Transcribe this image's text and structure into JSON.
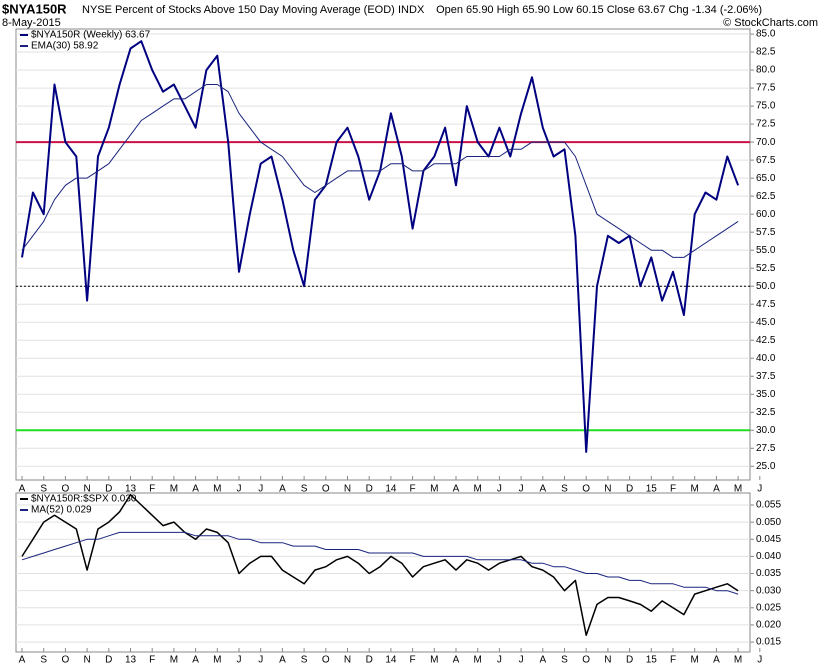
{
  "header": {
    "symbol": "$NYA150R",
    "description": "NYSE Percent of Stocks Above 150 Day Moving Average (EOD)",
    "exchange": "INDX",
    "date": "8-May-2015",
    "quote": "Open 65.90   High 65.90   Low 60.15   Close 63.67   Chg -1.34 (-2.06%)",
    "credit": "© StockCharts.com"
  },
  "chart_data": [
    {
      "type": "line",
      "categories": [
        "A",
        null,
        "S",
        null,
        "O",
        null,
        "N",
        null,
        "D",
        null,
        "13",
        null,
        "F",
        null,
        "M",
        null,
        "A",
        null,
        "M",
        null,
        "J",
        null,
        "J",
        null,
        "A",
        null,
        "S",
        null,
        "O",
        null,
        "N",
        null,
        "D",
        null,
        "14",
        null,
        "F",
        null,
        "M",
        null,
        "A",
        null,
        "M",
        null,
        "J",
        null,
        "J",
        null,
        "A",
        null,
        "S",
        null,
        "O",
        null,
        "N",
        null,
        "D",
        null,
        "15",
        null,
        "F",
        null,
        "M",
        null,
        "A",
        null,
        "M",
        null,
        "J",
        null
      ],
      "ylim": [
        23.1,
        85.7
      ],
      "yticks": [
        {
          "value": 25,
          "label": "25.0"
        },
        {
          "value": 27.5,
          "label": "27.5"
        },
        {
          "value": 30,
          "label": "30.0"
        },
        {
          "value": 32.5,
          "label": "32.5"
        },
        {
          "value": 35,
          "label": "35.0"
        },
        {
          "value": 37.5,
          "label": "37.5"
        },
        {
          "value": 40,
          "label": "40.0"
        },
        {
          "value": 42.5,
          "label": "42.5"
        },
        {
          "value": 45,
          "label": "45.0"
        },
        {
          "value": 47.5,
          "label": "47.5"
        },
        {
          "value": 50,
          "label": "50.0"
        },
        {
          "value": 52.5,
          "label": "52.5"
        },
        {
          "value": 55,
          "label": "55.0"
        },
        {
          "value": 57.5,
          "label": "57.5"
        },
        {
          "value": 60,
          "label": "60.0"
        },
        {
          "value": 62.5,
          "label": "62.5"
        },
        {
          "value": 65,
          "label": "65.0"
        },
        {
          "value": 67.5,
          "label": "67.5"
        },
        {
          "value": 70,
          "label": "70.0"
        },
        {
          "value": 72.5,
          "label": "72.5"
        },
        {
          "value": 75,
          "label": "75.0"
        },
        {
          "value": 77.5,
          "label": "77.5"
        },
        {
          "value": 80,
          "label": "80.0"
        },
        {
          "value": 82.5,
          "label": "82.5"
        },
        {
          "value": 85,
          "label": "85.0"
        }
      ],
      "grid": true,
      "reference_lines": [
        {
          "value": 70,
          "color": "#cc1144",
          "style": "solid"
        },
        {
          "value": 30,
          "color": "#22dd22",
          "style": "solid"
        },
        {
          "value": 50,
          "color": "#000000",
          "style": "dotted"
        }
      ],
      "series": [
        {
          "name": "$NYA150R (Weekly) 63.67",
          "color": "#000080",
          "width": 2,
          "values": [
            54,
            63,
            60,
            78,
            70,
            68,
            48,
            68,
            72,
            78,
            83,
            84,
            80,
            77,
            78,
            75,
            72,
            80,
            82,
            70,
            52,
            60,
            67,
            68,
            62,
            55,
            50,
            62,
            64,
            70,
            72,
            68,
            62,
            66,
            74,
            68,
            58,
            66,
            68,
            72,
            64,
            75,
            70,
            68,
            72,
            68,
            74,
            79,
            72,
            68,
            69,
            57,
            27,
            50,
            57,
            56,
            57,
            50,
            54,
            48,
            52,
            46,
            60,
            63,
            62,
            68,
            64,
            null,
            null,
            null
          ]
        },
        {
          "name": "EMA(30) 58.92",
          "color": "#1a237e",
          "width": 1,
          "values": [
            55,
            57,
            59,
            62,
            64,
            65,
            65,
            66,
            67,
            69,
            71,
            73,
            74,
            75,
            76,
            76,
            77,
            78,
            78,
            77,
            74,
            72,
            70,
            69,
            68,
            66,
            64,
            63,
            64,
            65,
            66,
            66,
            66,
            66,
            67,
            67,
            66,
            66,
            67,
            67,
            67,
            68,
            68,
            68,
            68,
            69,
            69,
            70,
            70,
            70,
            70,
            68,
            64,
            60,
            59,
            58,
            57,
            56,
            55,
            55,
            54,
            54,
            55,
            56,
            57,
            58,
            59,
            null,
            null,
            null
          ]
        }
      ]
    },
    {
      "type": "line",
      "categories": [
        "A",
        null,
        "S",
        null,
        "O",
        null,
        "N",
        null,
        "D",
        null,
        "13",
        null,
        "F",
        null,
        "M",
        null,
        "A",
        null,
        "M",
        null,
        "J",
        null,
        "J",
        null,
        "A",
        null,
        "S",
        null,
        "O",
        null,
        "N",
        null,
        "D",
        null,
        "14",
        null,
        "F",
        null,
        "M",
        null,
        "A",
        null,
        "M",
        null,
        "J",
        null,
        "J",
        null,
        "A",
        null,
        "S",
        null,
        "O",
        null,
        "N",
        null,
        "D",
        null,
        "15",
        null,
        "F",
        null,
        "M",
        null,
        "A",
        null,
        "M",
        null,
        "J",
        null
      ],
      "ylim": [
        0.0121,
        0.0585
      ],
      "yticks": [
        0.015,
        {
          "value": 0.02,
          "label": "0.020"
        },
        0.025,
        {
          "value": 0.03,
          "label": "0.030"
        },
        0.035,
        {
          "value": 0.04,
          "label": "0.040"
        },
        0.045,
        {
          "value": 0.05,
          "label": "0.050"
        },
        0.055
      ],
      "grid": true,
      "series": [
        {
          "name": "$NYA150R:$SPX 0.030",
          "color": "#000000",
          "width": 1.5,
          "values": [
            0.04,
            0.045,
            0.05,
            0.052,
            0.05,
            0.048,
            0.036,
            0.048,
            0.05,
            0.053,
            0.058,
            0.055,
            0.052,
            0.049,
            0.05,
            0.047,
            0.045,
            0.048,
            0.047,
            0.044,
            0.035,
            0.038,
            0.04,
            0.04,
            0.036,
            0.034,
            0.032,
            0.036,
            0.037,
            0.039,
            0.04,
            0.038,
            0.035,
            0.037,
            0.04,
            0.038,
            0.034,
            0.037,
            0.038,
            0.039,
            0.036,
            0.039,
            0.038,
            0.036,
            0.038,
            0.039,
            0.04,
            0.037,
            0.036,
            0.034,
            0.03,
            0.033,
            0.017,
            0.026,
            0.028,
            0.028,
            0.027,
            0.026,
            0.024,
            0.027,
            0.025,
            0.023,
            0.029,
            0.03,
            0.031,
            0.032,
            0.03,
            null,
            null,
            null
          ]
        },
        {
          "name": "MA(52) 0.029",
          "color": "#1a237e",
          "width": 1,
          "values": [
            0.039,
            0.04,
            0.041,
            0.042,
            0.043,
            0.044,
            0.045,
            0.045,
            0.046,
            0.047,
            0.047,
            0.047,
            0.047,
            0.047,
            0.047,
            0.047,
            0.046,
            0.046,
            0.046,
            0.046,
            0.045,
            0.045,
            0.044,
            0.044,
            0.044,
            0.043,
            0.043,
            0.043,
            0.042,
            0.042,
            0.042,
            0.042,
            0.041,
            0.041,
            0.041,
            0.041,
            0.041,
            0.04,
            0.04,
            0.04,
            0.04,
            0.04,
            0.039,
            0.039,
            0.039,
            0.039,
            0.039,
            0.038,
            0.038,
            0.037,
            0.037,
            0.036,
            0.035,
            0.035,
            0.034,
            0.034,
            0.033,
            0.033,
            0.032,
            0.032,
            0.032,
            0.031,
            0.031,
            0.031,
            0.03,
            0.03,
            0.029,
            null,
            null,
            null
          ]
        }
      ]
    }
  ]
}
